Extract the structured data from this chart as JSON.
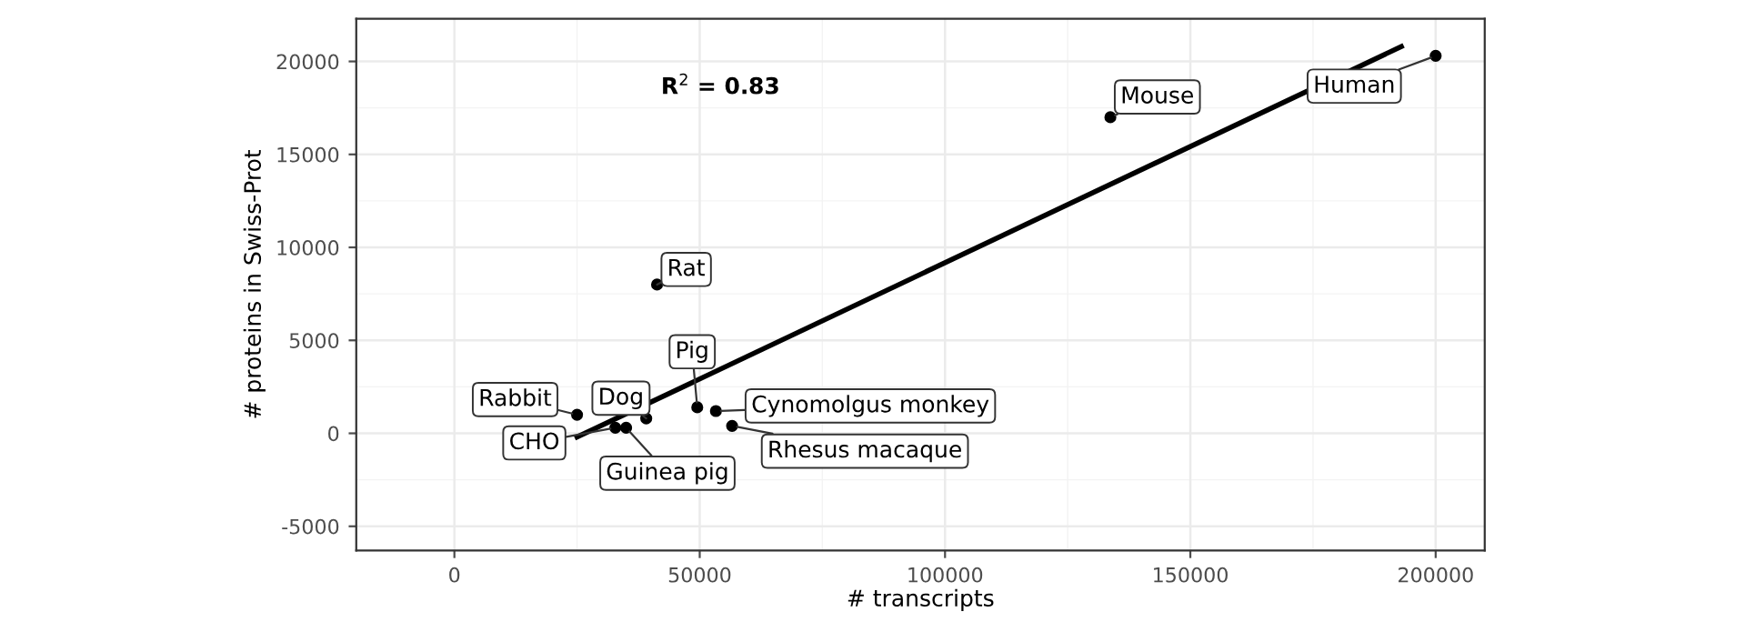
{
  "chart_data": {
    "type": "scatter",
    "xlabel": "# transcripts",
    "ylabel": "# proteins in Swiss-Prot",
    "x": [
      200000,
      133700,
      41300,
      49500,
      53300,
      56600,
      39100,
      35000,
      32800,
      25000
    ],
    "series": [
      {
        "color": "#000000",
        "values": [
          20300,
          17000,
          8000,
          1400,
          1200,
          400,
          800,
          300,
          300,
          1000
        ]
      },
      {
        "type": "line",
        "marker": "none",
        "color": "#000000",
        "x": [
          25000,
          193000
        ],
        "values": [
          -200,
          20800
        ]
      }
    ],
    "annotations": [
      "R$^{2}$ = 0.83",
      {
        "text": "Human",
        "x": 200000,
        "y": 20300
      },
      {
        "text": "Mouse",
        "x": 133700,
        "y": 17000
      },
      {
        "text": "Rat",
        "x": 41300,
        "y": 8000
      },
      {
        "text": "Pig",
        "x": 49500,
        "y": 1400
      },
      {
        "text": "Cynomolgus monkey",
        "x": 53300,
        "y": 1200
      },
      {
        "text": "Rhesus macaque",
        "x": 56600,
        "y": 400
      },
      {
        "text": "Dog",
        "x": 39100,
        "y": 800
      },
      {
        "text": "Guinea pig",
        "x": 35000,
        "y": 300
      },
      {
        "text": "CHO",
        "x": 32800,
        "y": 300
      },
      {
        "text": "Rabbit",
        "x": 25000,
        "y": 1000
      }
    ],
    "xlim": [
      -20000,
      210000
    ],
    "ylim": [
      -6300,
      22300
    ],
    "xticks": [
      0,
      50000,
      100000,
      150000,
      200000
    ],
    "yticks": [
      -5000,
      0,
      5000,
      10000,
      15000,
      20000
    ],
    "grid": true,
    "marker": "circle",
    "line_style": "solid"
  }
}
